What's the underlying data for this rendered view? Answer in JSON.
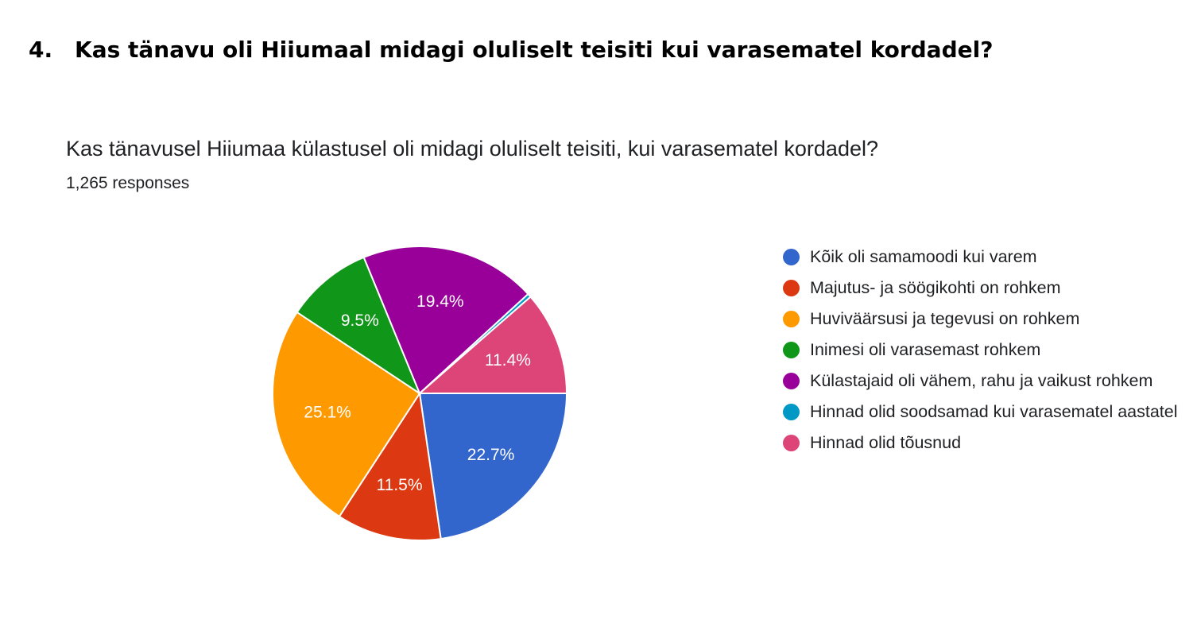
{
  "heading": {
    "number": "4.",
    "text": "Kas tänavu oli Hiiumaal midagi oluliselt teisiti kui varasematel kordadel?"
  },
  "card": {
    "title": "Kas tänavusel Hiiumaa külastusel oli midagi oluliselt teisiti, kui varasematel kordadel?",
    "responses": "1,265 responses"
  },
  "chart_data": {
    "type": "pie",
    "title": "Kas tänavusel Hiiumaa külastusel oli midagi oluliselt teisiti, kui varasematel kordadel?",
    "legend_position": "right",
    "start_angle_deg": 90,
    "direction": "clockwise",
    "slices": [
      {
        "label": "Kõik oli samamoodi kui varem",
        "value": 22.7,
        "display": "22.7%",
        "color": "#3366cc"
      },
      {
        "label": "Majutus- ja söögikohti on rohkem",
        "value": 11.5,
        "display": "11.5%",
        "color": "#dc3912"
      },
      {
        "label": "Huviväärsusi ja tegevusi on rohkem",
        "value": 25.1,
        "display": "25.1%",
        "color": "#ff9900"
      },
      {
        "label": "Inimesi oli varasemast rohkem",
        "value": 9.5,
        "display": "9.5%",
        "color": "#109618"
      },
      {
        "label": "Külastajaid oli vähem, rahu ja vaikust rohkem",
        "value": 19.4,
        "display": "19.4%",
        "color": "#990099"
      },
      {
        "label": "Hinnad olid soodsamad kui varasematel aastatel",
        "value": 0.4,
        "display": "",
        "color": "#0099c6"
      },
      {
        "label": "Hinnad olid tõusnud",
        "value": 11.4,
        "display": "11.4%",
        "color": "#dd4477"
      }
    ]
  }
}
